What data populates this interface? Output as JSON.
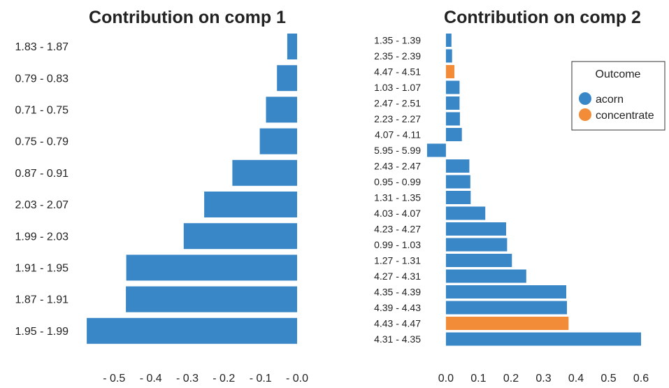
{
  "colors": {
    "acorn": "#3a87c8",
    "concentrate": "#f28c38",
    "background": "#ffffff",
    "text": "#222222"
  },
  "chart_data": [
    {
      "type": "bar",
      "orientation": "horizontal",
      "title": "Contribution on comp 1",
      "xlim": [
        -0.6,
        0.0
      ],
      "xticks": [
        -0.5,
        -0.4,
        -0.3,
        -0.2,
        -0.1,
        0.0
      ],
      "xtick_labels": [
        "- 0.5",
        "- 0.4",
        "- 0.3",
        "- 0.2",
        "- 0.1",
        "- 0.0"
      ],
      "legend": null,
      "bars": [
        {
          "label": "1.83 - 1.87",
          "value": -0.027,
          "group": "acorn"
        },
        {
          "label": "0.79 - 0.83",
          "value": -0.055,
          "group": "acorn"
        },
        {
          "label": "0.71 - 0.75",
          "value": -0.085,
          "group": "acorn"
        },
        {
          "label": "0.75 - 0.79",
          "value": -0.102,
          "group": "acorn"
        },
        {
          "label": "0.87 - 0.91",
          "value": -0.177,
          "group": "acorn"
        },
        {
          "label": "2.03 - 2.07",
          "value": -0.254,
          "group": "acorn"
        },
        {
          "label": "1.99 - 2.03",
          "value": -0.31,
          "group": "acorn"
        },
        {
          "label": "1.91 - 1.95",
          "value": -0.467,
          "group": "acorn"
        },
        {
          "label": "1.87 - 1.91",
          "value": -0.468,
          "group": "acorn"
        },
        {
          "label": "1.95 - 1.99",
          "value": -0.575,
          "group": "acorn"
        }
      ]
    },
    {
      "type": "bar",
      "orientation": "horizontal",
      "title": "Contribution on comp 2",
      "xlim": [
        -0.06,
        0.63
      ],
      "xticks": [
        0.0,
        0.1,
        0.2,
        0.3,
        0.4,
        0.5,
        0.6
      ],
      "xtick_labels": [
        "0.0",
        "0.1",
        "0.2",
        "0.3",
        "0.4",
        "0.5",
        "0.6"
      ],
      "legend": {
        "title": "Outcome",
        "position": "top-right",
        "entries": [
          {
            "name": "acorn",
            "group": "acorn"
          },
          {
            "name": "concentrate",
            "group": "concentrate"
          }
        ]
      },
      "bars": [
        {
          "label": "1.35 - 1.39",
          "value": 0.017,
          "group": "acorn"
        },
        {
          "label": "2.35 - 2.39",
          "value": 0.019,
          "group": "acorn"
        },
        {
          "label": "4.47 - 4.51",
          "value": 0.026,
          "group": "concentrate"
        },
        {
          "label": "1.03 - 1.07",
          "value": 0.042,
          "group": "acorn"
        },
        {
          "label": "2.47 - 2.51",
          "value": 0.042,
          "group": "acorn"
        },
        {
          "label": "2.23 - 2.27",
          "value": 0.043,
          "group": "acorn"
        },
        {
          "label": "4.07 - 4.11",
          "value": 0.049,
          "group": "acorn"
        },
        {
          "label": "5.95 - 5.99",
          "value": -0.058,
          "group": "acorn"
        },
        {
          "label": "2.43 - 2.47",
          "value": 0.072,
          "group": "acorn"
        },
        {
          "label": "0.95 - 0.99",
          "value": 0.075,
          "group": "acorn"
        },
        {
          "label": "1.31 - 1.35",
          "value": 0.076,
          "group": "acorn"
        },
        {
          "label": "4.03 - 4.07",
          "value": 0.121,
          "group": "acorn"
        },
        {
          "label": "4.23 - 4.27",
          "value": 0.185,
          "group": "acorn"
        },
        {
          "label": "0.99 - 1.03",
          "value": 0.188,
          "group": "acorn"
        },
        {
          "label": "1.27 - 1.31",
          "value": 0.203,
          "group": "acorn"
        },
        {
          "label": "4.27 - 4.31",
          "value": 0.247,
          "group": "acorn"
        },
        {
          "label": "4.35 - 4.39",
          "value": 0.37,
          "group": "acorn"
        },
        {
          "label": "4.39 - 4.43",
          "value": 0.372,
          "group": "acorn"
        },
        {
          "label": "4.43 - 4.47",
          "value": 0.377,
          "group": "concentrate"
        },
        {
          "label": "4.31 - 4.35",
          "value": 0.6,
          "group": "acorn"
        }
      ]
    }
  ]
}
